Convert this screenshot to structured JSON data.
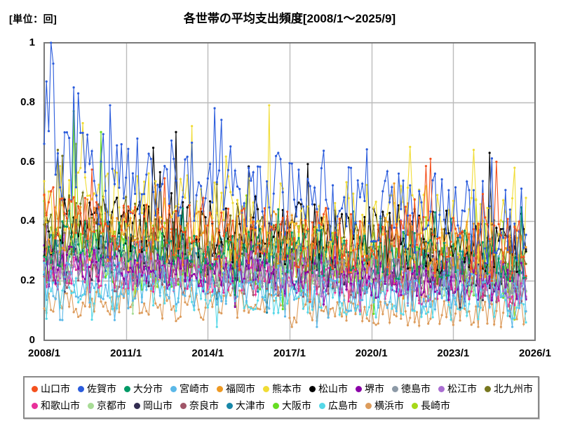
{
  "chart_data": {
    "type": "line",
    "title": "各世帯の平均支出頻度[2008/1～2025/9]",
    "unit_label": "[単位：回]",
    "unit": "回",
    "period_start": "2008/1",
    "period_end": "2025/9",
    "sampling": "monthly",
    "data_months": 213,
    "axis_months_total": 216,
    "x_ticks": [
      "2008/1",
      "2011/1",
      "2014/1",
      "2017/1",
      "2020/1",
      "2023/1",
      "2026/1"
    ],
    "y_ticks": [
      {
        "label": "1",
        "value": 1.0
      },
      {
        "label": "0.8",
        "value": 0.8
      },
      {
        "label": "0.6",
        "value": 0.6
      },
      {
        "label": "0.4",
        "value": 0.4
      },
      {
        "label": "0.2",
        "value": 0.2
      },
      {
        "label": "0",
        "value": 0.0
      }
    ],
    "ylim": [
      0,
      1
    ],
    "grid": true,
    "grid_color": "#bbbbbb",
    "frame_color": "#7a7a7a",
    "legend_position": "bottom",
    "marker": "circle",
    "series": [
      {
        "name": "山口市",
        "color": "#F4511E",
        "start_mean": 0.4,
        "end_mean": 0.3,
        "noise_amp": 0.11,
        "seed": 11,
        "peaks": [
          [
            170,
            0.61
          ],
          [
            199,
            0.6
          ]
        ]
      },
      {
        "name": "佐賀市",
        "color": "#2B5CDC",
        "start_mean": 0.6,
        "end_mean": 0.38,
        "noise_amp": 0.14,
        "seed": 22,
        "peaks": [
          [
            1,
            0.87
          ],
          [
            3,
            1.0
          ],
          [
            4,
            0.93
          ],
          [
            13,
            0.85
          ],
          [
            15,
            0.83
          ],
          [
            29,
            0.79
          ],
          [
            75,
            0.78
          ],
          [
            103,
            0.63
          ]
        ]
      },
      {
        "name": "大分市",
        "color": "#009966",
        "start_mean": 0.33,
        "end_mean": 0.27,
        "noise_amp": 0.08,
        "seed": 33
      },
      {
        "name": "宮崎市",
        "color": "#5BB8E8",
        "start_mean": 0.2,
        "end_mean": 0.15,
        "noise_amp": 0.07,
        "seed": 44
      },
      {
        "name": "福岡市",
        "color": "#EE9922",
        "start_mean": 0.37,
        "end_mean": 0.3,
        "noise_amp": 0.1,
        "seed": 55
      },
      {
        "name": "熊本市",
        "color": "#F0DC35",
        "start_mean": 0.46,
        "end_mean": 0.37,
        "noise_amp": 0.13,
        "seed": 66,
        "peaks": [
          [
            17,
            0.73
          ],
          [
            65,
            0.72
          ],
          [
            99,
            0.79
          ],
          [
            161,
            0.65
          ],
          [
            189,
            0.64
          ],
          [
            207,
            0.58
          ]
        ]
      },
      {
        "name": "松山市",
        "color": "#000000",
        "start_mean": 0.39,
        "end_mean": 0.32,
        "noise_amp": 0.11,
        "seed": 77,
        "peaks": [
          [
            58,
            0.7
          ],
          [
            196,
            0.63
          ]
        ]
      },
      {
        "name": "堺市",
        "color": "#8A00A8",
        "start_mean": 0.25,
        "end_mean": 0.19,
        "noise_amp": 0.07,
        "seed": 88
      },
      {
        "name": "徳島市",
        "color": "#8C99A6",
        "start_mean": 0.28,
        "end_mean": 0.22,
        "noise_amp": 0.08,
        "seed": 99
      },
      {
        "name": "松江市",
        "color": "#AA6ED2",
        "start_mean": 0.28,
        "end_mean": 0.22,
        "noise_amp": 0.08,
        "seed": 110
      },
      {
        "name": "北九州市",
        "color": "#77771F",
        "start_mean": 0.37,
        "end_mean": 0.27,
        "noise_amp": 0.1,
        "seed": 121,
        "peaks": [
          [
            6,
            0.64
          ],
          [
            8,
            0.62
          ]
        ]
      },
      {
        "name": "和歌山市",
        "color": "#E8309A",
        "start_mean": 0.24,
        "end_mean": 0.18,
        "noise_amp": 0.07,
        "seed": 132
      },
      {
        "name": "京都市",
        "color": "#A8DC96",
        "start_mean": 0.27,
        "end_mean": 0.21,
        "noise_amp": 0.08,
        "seed": 143
      },
      {
        "name": "岡山市",
        "color": "#322C50",
        "start_mean": 0.3,
        "end_mean": 0.24,
        "noise_amp": 0.08,
        "seed": 154
      },
      {
        "name": "奈良市",
        "color": "#A05568",
        "start_mean": 0.24,
        "end_mean": 0.19,
        "noise_amp": 0.07,
        "seed": 165
      },
      {
        "name": "大津市",
        "color": "#1787A8",
        "start_mean": 0.29,
        "end_mean": 0.23,
        "noise_amp": 0.08,
        "seed": 176
      },
      {
        "name": "大阪市",
        "color": "#66DD22",
        "start_mean": 0.28,
        "end_mean": 0.22,
        "noise_amp": 0.09,
        "seed": 187,
        "peaks": [
          [
            13,
            0.77
          ],
          [
            25,
            0.7
          ]
        ]
      },
      {
        "name": "広島市",
        "color": "#55D8E8",
        "start_mean": 0.18,
        "end_mean": 0.13,
        "noise_amp": 0.07,
        "seed": 198
      },
      {
        "name": "横浜市",
        "color": "#DD9C5C",
        "start_mean": 0.14,
        "end_mean": 0.1,
        "noise_amp": 0.06,
        "seed": 209
      },
      {
        "name": "長崎市",
        "color": "#A6D818",
        "start_mean": 0.33,
        "end_mean": 0.25,
        "noise_amp": 0.1,
        "seed": 220,
        "peaks": [
          [
            14,
            0.66
          ]
        ]
      }
    ]
  }
}
